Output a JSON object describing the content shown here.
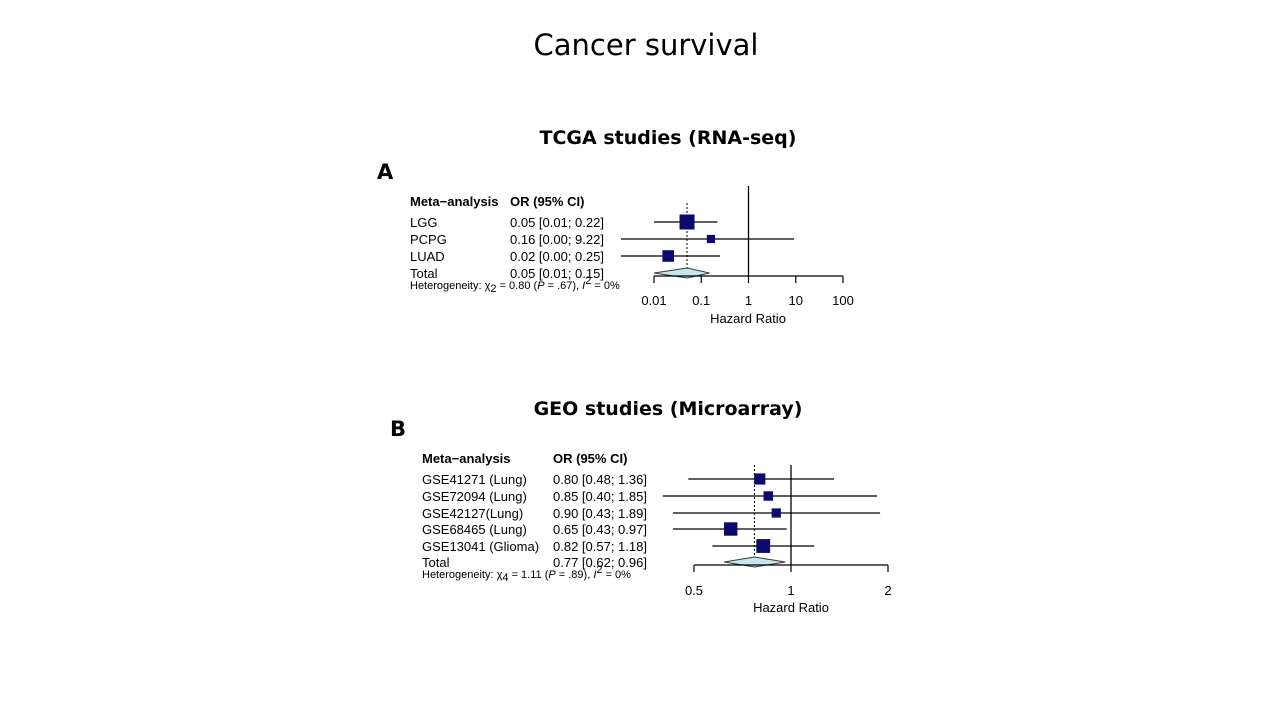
{
  "slide_title": "Cancer survival",
  "chart_data": [
    {
      "type": "forest",
      "panel_label": "A",
      "title": "TCGA studies (RNA-seq)",
      "header": {
        "study": "Meta−analysis",
        "effect": "OR (95% CI)"
      },
      "xlabel": "Hazard Ratio",
      "xscale": "log",
      "xlim": [
        0.01,
        100
      ],
      "xticks": [
        0.01,
        0.1,
        1,
        10,
        100
      ],
      "xtick_labels": [
        "0.01",
        "0.1",
        "1",
        "10",
        "100"
      ],
      "reference_line": 1,
      "studies": [
        {
          "name": "LGG",
          "ci_text": "0.05 [0.01; 0.22]",
          "est": 0.05,
          "lo": 0.01,
          "hi": 0.22,
          "weight": 1.0
        },
        {
          "name": "PCPG",
          "ci_text": "0.16 [0.00; 9.22]",
          "est": 0.16,
          "lo": 0.002,
          "hi": 9.22,
          "weight": 0.3
        },
        {
          "name": "LUAD",
          "ci_text": "0.02 [0.00; 0.25]",
          "est": 0.02,
          "lo": 0.002,
          "hi": 0.25,
          "weight": 0.6
        }
      ],
      "total": {
        "name": "Total",
        "ci_text": "0.05 [0.01; 0.15]",
        "est": 0.05,
        "lo": 0.01,
        "hi": 0.15
      },
      "heterogeneity": {
        "prefix": "Heterogeneity: ",
        "chi_df": "2",
        "chi_value": "0.80",
        "p_text": ".67",
        "i2": "0%"
      }
    },
    {
      "type": "forest",
      "panel_label": "B",
      "title": "GEO studies (Microarray)",
      "header": {
        "study": "Meta−analysis",
        "effect": "OR (95% CI)"
      },
      "xlabel": "Hazard Ratio",
      "xscale": "log",
      "xlim": [
        0.5,
        2
      ],
      "xticks": [
        0.5,
        1,
        2
      ],
      "xtick_labels": [
        "0.5",
        "1",
        "2"
      ],
      "reference_line": 1,
      "studies": [
        {
          "name": "GSE41271 (Lung)",
          "ci_text": "0.80 [0.48; 1.36]",
          "est": 0.8,
          "lo": 0.48,
          "hi": 1.36,
          "weight": 0.55
        },
        {
          "name": "GSE72094 (Lung)",
          "ci_text": "0.85 [0.40; 1.85]",
          "est": 0.85,
          "lo": 0.4,
          "hi": 1.85,
          "weight": 0.4
        },
        {
          "name": "GSE42127(Lung)",
          "ci_text": "0.90 [0.43; 1.89]",
          "est": 0.9,
          "lo": 0.43,
          "hi": 1.89,
          "weight": 0.38
        },
        {
          "name": "GSE68465 (Lung)",
          "ci_text": "0.65 [0.43; 0.97]",
          "est": 0.65,
          "lo": 0.43,
          "hi": 0.97,
          "weight": 0.8
        },
        {
          "name": "GSE13041 (Glioma)",
          "ci_text": "0.82 [0.57; 1.18]",
          "est": 0.82,
          "lo": 0.57,
          "hi": 1.18,
          "weight": 0.85
        }
      ],
      "total": {
        "name": "Total",
        "ci_text": "0.77 [0.62; 0.96]",
        "est": 0.77,
        "lo": 0.62,
        "hi": 0.96
      },
      "heterogeneity": {
        "prefix": "Heterogeneity: ",
        "chi_df": "4",
        "chi_value": "1.11",
        "p_text": ".89",
        "i2": "0%"
      }
    }
  ],
  "colors": {
    "square": "#0a0a6e",
    "diamond_fill": "#c6e6ee",
    "diamond_stroke": "#3a3a3a",
    "line": "#000000"
  }
}
